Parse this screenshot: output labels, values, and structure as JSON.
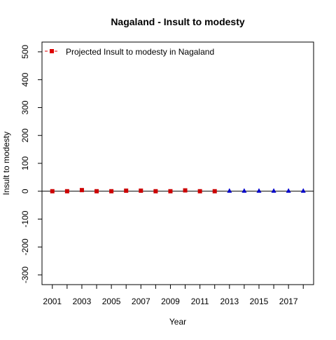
{
  "chart_data": {
    "type": "scatter",
    "title": "Nagaland  -  Insult to modesty",
    "xlabel": "Year",
    "ylabel": "Insult to modesty",
    "xlim": [
      2000.3,
      2018.7
    ],
    "ylim": [
      -335,
      535
    ],
    "x_ticks": [
      2001,
      2003,
      2005,
      2007,
      2009,
      2011,
      2013,
      2015,
      2017
    ],
    "x_tick_marks": [
      2001,
      2002,
      2003,
      2004,
      2005,
      2006,
      2007,
      2008,
      2009,
      2010,
      2011,
      2012,
      2013,
      2014,
      2015,
      2016,
      2017,
      2018
    ],
    "y_ticks": [
      -300,
      -200,
      -100,
      0,
      100,
      200,
      300,
      400,
      500
    ],
    "grid": false,
    "reference_line_y": 0,
    "legend": {
      "placement": "top-left",
      "entries": [
        {
          "label": "Projected  Insult to modesty  in  Nagaland",
          "color": "#dd0000",
          "marker": "square",
          "linestyle": "dashed"
        }
      ]
    },
    "series": [
      {
        "name": "Projected  Insult to modesty  in  Nagaland",
        "color": "#cc0000",
        "marker": "square",
        "x": [
          2001,
          2002,
          2003,
          2004,
          2005,
          2006,
          2007,
          2008,
          2009,
          2010,
          2011,
          2012
        ],
        "y": [
          0,
          0,
          4,
          0,
          0,
          2,
          2,
          0,
          0,
          3,
          0,
          0
        ]
      },
      {
        "color": "#0000cc",
        "marker": "triangle",
        "x": [
          2013,
          2014,
          2015,
          2016,
          2017,
          2018
        ],
        "y": [
          1,
          1,
          1,
          1,
          1,
          1
        ]
      }
    ]
  }
}
